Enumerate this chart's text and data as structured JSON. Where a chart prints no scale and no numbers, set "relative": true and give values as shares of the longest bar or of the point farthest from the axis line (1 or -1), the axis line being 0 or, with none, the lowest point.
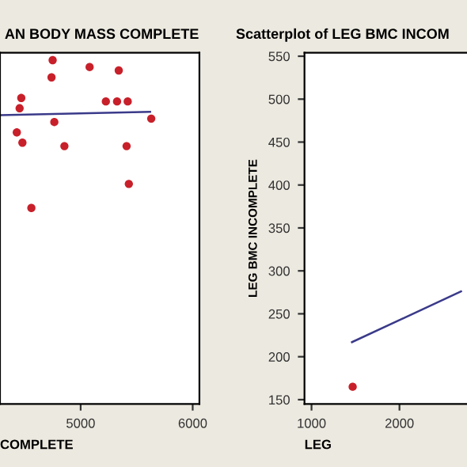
{
  "chart_data": [
    {
      "type": "scatter",
      "title": "AN BODY MASS COMPLETE",
      "xlabel": "COMPLETE",
      "relative": true,
      "tick_labels": "x",
      "xlim": [
        4280,
        6060
      ],
      "xticks": [
        5000,
        6000
      ],
      "grid": false,
      "legend": false,
      "series": [
        {
          "marker": "circle",
          "color": "#c8202a",
          "x": [
            4750,
            4740,
            5080,
            5340,
            4470,
            4455,
            5225,
            5325,
            5420,
            4765,
            5630,
            4430,
            4480,
            4855,
            5410,
            5430,
            4560
          ],
          "values": [
            1.0,
            0.95,
            0.98,
            0.97,
            0.89,
            0.86,
            0.88,
            0.88,
            0.88,
            0.82,
            0.83,
            0.79,
            0.76,
            0.75,
            0.75,
            0.64,
            0.57
          ]
        },
        {
          "type": "line",
          "color": "#3a3a8a",
          "x": [
            4280,
            5620
          ],
          "values": [
            0.84,
            0.85
          ]
        }
      ]
    },
    {
      "type": "scatter",
      "title": "Scatterplot of LEG BMC INCOM",
      "xlabel": "LEG",
      "ylabel": "LEG BMC INCOMPLETE",
      "xlim": [
        920,
        2768
      ],
      "xticks": [
        1000,
        2000
      ],
      "ylim": [
        145,
        554
      ],
      "yticks": [
        150,
        200,
        250,
        300,
        350,
        400,
        450,
        500,
        550
      ],
      "grid": false,
      "legend": false,
      "series": [
        {
          "marker": "circle",
          "color": "#c8202a",
          "x": [
            1468
          ],
          "values": [
            165
          ]
        },
        {
          "type": "line",
          "color": "#3a3a8a",
          "x": [
            1460,
            2700
          ],
          "values": [
            217,
            276
          ]
        }
      ]
    }
  ]
}
